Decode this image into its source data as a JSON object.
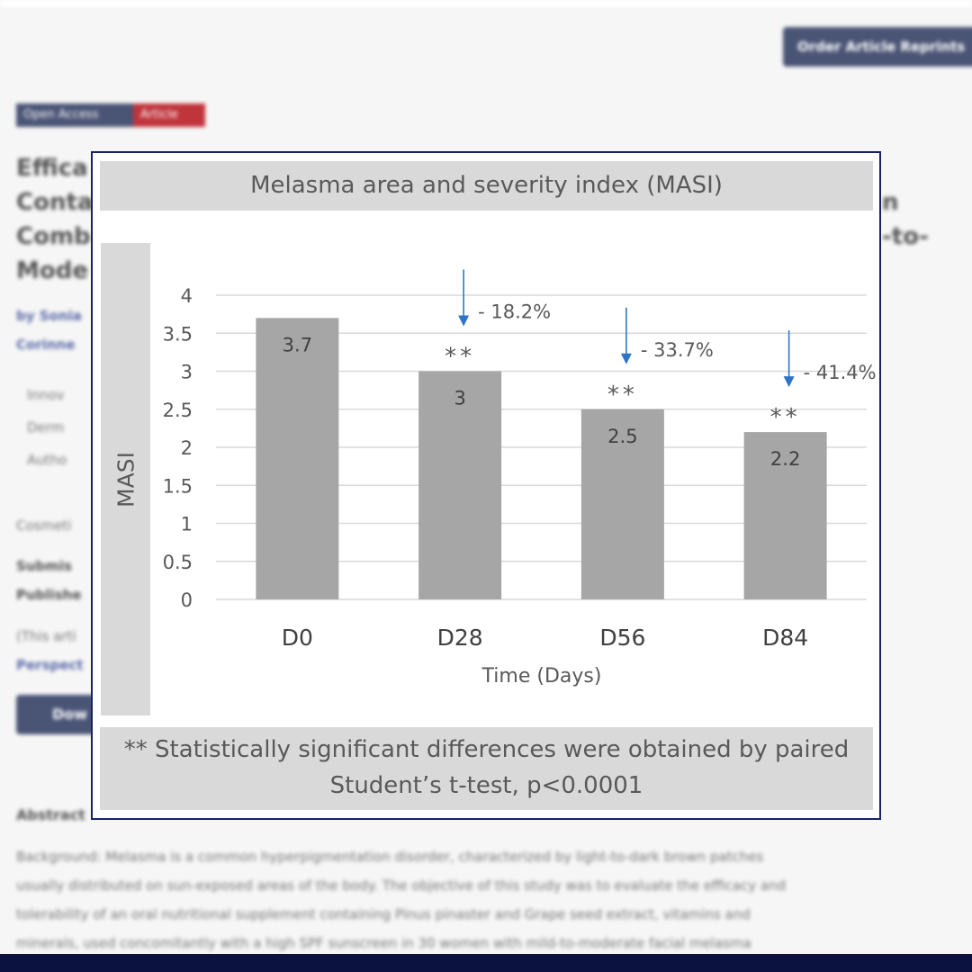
{
  "background_page": {
    "order_button": "Order Article Reprints",
    "badges": [
      "Open Access",
      "Article"
    ],
    "title_lines": [
      "Effica",
      "Conta",
      "Comb",
      "Mode"
    ],
    "title_right": [
      "n",
      "-to-"
    ],
    "authors": [
      "by Sonia",
      "Corinne"
    ],
    "affiliations": [
      "Innov",
      "Derm",
      "Autho"
    ],
    "journal": "Cosmeti",
    "submitted": "Submis",
    "published": "Publishe",
    "note": "(This arti",
    "note2": "Perspect",
    "download_button": "Dow",
    "abstract_heading": "Abstract",
    "abstract_lines": [
      "Background: Melasma is a common hyperpigmentation disorder, characterized by light-to-dark brown patches",
      "usually distributed on sun-exposed areas of the body. The objective of this study was to evaluate the efficacy and",
      "tolerability of an oral nutritional supplement containing Pinus pinaster and Grape seed extract, vitamins and",
      "minerals, used concomitantly with a high SPF sunscreen in 30 women with mild-to-moderate facial melasma"
    ]
  },
  "chart_data": {
    "type": "bar",
    "title": "Melasma area and severity index (MASI)",
    "xlabel": "Time (Days)",
    "ylabel": "MASI",
    "categories": [
      "D0",
      "D28",
      "D56",
      "D84"
    ],
    "values": [
      3.7,
      3,
      2.5,
      2.2
    ],
    "value_labels": [
      "3.7",
      "3",
      "2.5",
      "2.2"
    ],
    "ylim": [
      0,
      4
    ],
    "yticks": [
      "0",
      "0.5",
      "1",
      "1.5",
      "2",
      "2.5",
      "3",
      "3.5",
      "4"
    ],
    "significance_marks": [
      "",
      "**",
      "**",
      "**"
    ],
    "change_labels": [
      "",
      "- 18.2%",
      "- 33.7%",
      "- 41.4%"
    ],
    "grid": true,
    "bar_color": "#a6a6a6",
    "arrow_color": "#2e75c8",
    "footnote_lines": [
      "** Statistically significant differences were obtained by paired",
      "Student’s t-test,  p<0.0001"
    ]
  }
}
